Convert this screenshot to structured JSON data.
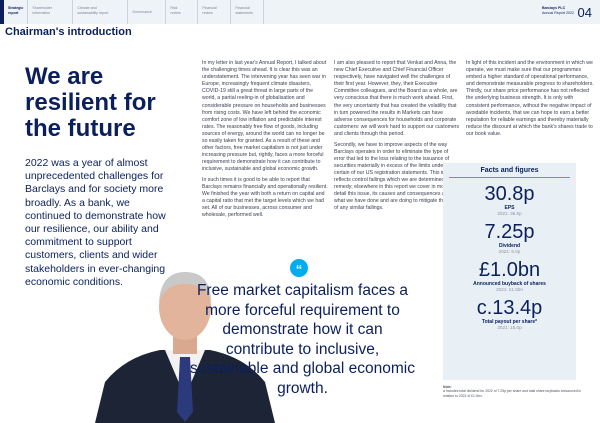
{
  "nav": {
    "items": [
      {
        "line1": "Strategic",
        "line2": "report"
      },
      {
        "line1": "Shareholder",
        "line2": "information"
      },
      {
        "line1": "Climate and",
        "line2": "sustainability report"
      },
      {
        "line1": "Governance",
        "line2": ""
      },
      {
        "line1": "Risk",
        "line2": "review"
      },
      {
        "line1": "Financial",
        "line2": "review"
      },
      {
        "line1": "Financial",
        "line2": "statements"
      }
    ],
    "brand": "Barclays PLC",
    "report": "Annual Report 2022",
    "page": "04"
  },
  "title": "Chairman's introduction",
  "hero": "We are resilient for the future",
  "lead": "2022 was a year of almost unprecedented challenges for Barclays and for society more broadly. As a bank, we continued to demonstrate how our resilience, our ability and commitment to support customers, clients and wider stakeholders in ever-changing economic conditions.",
  "columns": [
    [
      "In my letter in last year's Annual Report, I talked about the challenging times ahead. It is clear this was an understatement. The intervening year has seen war in Europe, increasingly frequent climate disasters, COVID-19 still a great threat in large parts of the world, a partial reeling-in of globalisation and considerable pressure on households and businesses from rising costs. We have left behind the economic comfort zone of low inflation and predictable interest rates. The reasonably free flow of goods, including sources of energy, around the world can no longer be so easily taken for granted. As a result of these and other factors, free market capitalism is not just under increasing pressure but, rightly, faces a more forceful requirement to demonstrate how it can contribute to inclusive, sustainable and global economic growth.",
      "In such times it is good to be able to report that Barclays remains financially and operationally resilient. We finished the year with both a return on capital and a capital ratio that met the target levels which we had set. All of our businesses, across consumer and wholesale, performed well."
    ],
    [
      "I am also pleased to report that Venkat and Anna, the new Chief Executive and Chief Financial Officer respectively, have navigated well the challenges of their first year. However, they, their Executive Committee colleagues, and the Board as a whole, are very conscious that there is much work ahead. First, the very uncertainty that has created the volatility that in turn powered the results in Markets can have adverse consequences for households and corporate customers: we will work hard to support our customers and clients through this period.",
      "Secondly, we have to improve aspects of the way Barclays operates in order to eliminate the type of error that led to the loss relating to the issuance of securities materially in excess of the limits under certain of our US registration statements. This incident reflects control failings which we are determined to remedy; elsewhere in this report we cover in more detail this issue, its causes and consequences and what we have done and are doing to mitigate the risk of any similar failings."
    ],
    [
      "In light of this incident and the environment in which we operate, we must make sure that our programmes embed a higher standard of operational performance, and demonstrate measurable progress to shareholders. Thirdly, our share price performance has not reflected the underlying business strength. It is only with consistent performance, without the negative impact of avoidable incidents, that we can hope to earn a better reputation for reliable earnings and thereby materially reduce the discount at which the bank's shares trade to our book value."
    ]
  ],
  "facts": {
    "heading": "Facts and figures",
    "items": [
      {
        "value": "30.8p",
        "label": "EPS",
        "prior": "2021: 36.5p"
      },
      {
        "value": "7.25p",
        "label": "Dividend",
        "prior": "2021: 6.0p"
      },
      {
        "value": "£1.0bn",
        "label": "Announced buyback of shares",
        "prior": "2021: £1.5bn"
      },
      {
        "value": "c.13.4p",
        "label": "Total payout per share*",
        "prior": "2021: 15.0p"
      }
    ],
    "note_title": "Note:",
    "note": "a Includes total dividend for 2022 of 7.25p per share and total share buybacks announced in relation to 2022 of £1.0bn."
  },
  "quote": {
    "mark": "“",
    "text": "Free market capitalism faces a more forceful requirement to demonstrate how it can contribute to inclusive, sustainable and global economic growth."
  },
  "colors": {
    "navy": "#0b1f5c",
    "accent": "#00aeef",
    "panel": "#e8f0f6"
  }
}
